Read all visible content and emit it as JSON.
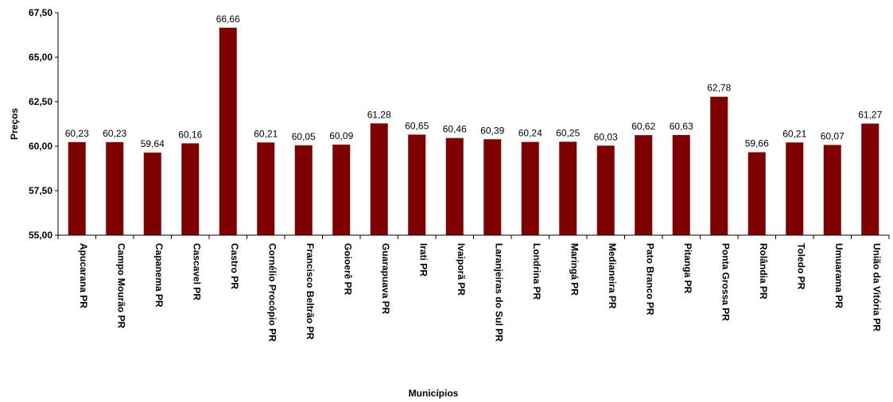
{
  "chart_data": {
    "type": "bar",
    "title": "",
    "xlabel": "Municípios",
    "ylabel": "Preços",
    "ylim": [
      55,
      67.5
    ],
    "yticks": [
      "55,00",
      "57,50",
      "60,00",
      "62,50",
      "65,00",
      "67,50"
    ],
    "grid": false,
    "bar_color": "#7f0000",
    "categories": [
      "Apucarana PR",
      "Campo Mourão PR",
      "Capanema PR",
      "Cascavel PR",
      "Castro PR",
      "Cornélio Procópio PR",
      "Francisco Beltrão PR",
      "Goioerê PR",
      "Guarapuava PR",
      "Irati PR",
      "Ivaiporã PR",
      "Laranjeiras do Sul PR",
      "Londrina PR",
      "Maringá PR",
      "Medianeira PR",
      "Pato Branco PR",
      "Pitanga PR",
      "Ponta Grossa PR",
      "Rolândia PR",
      "Toledo PR",
      "Umuarama PR",
      "União da Vitória PR"
    ],
    "values": [
      60.23,
      60.23,
      59.64,
      60.16,
      66.66,
      60.21,
      60.05,
      60.09,
      61.28,
      60.65,
      60.46,
      60.39,
      60.24,
      60.25,
      60.03,
      60.62,
      60.63,
      62.78,
      59.66,
      60.21,
      60.07,
      61.27
    ],
    "value_labels": [
      "60,23",
      "60,23",
      "59,64",
      "60,16",
      "66,66",
      "60,21",
      "60,05",
      "60,09",
      "61,28",
      "60,65",
      "60,46",
      "60,39",
      "60,24",
      "60,25",
      "60,03",
      "60,62",
      "60,63",
      "62,78",
      "59,66",
      "60,21",
      "60,07",
      "61,27"
    ]
  }
}
